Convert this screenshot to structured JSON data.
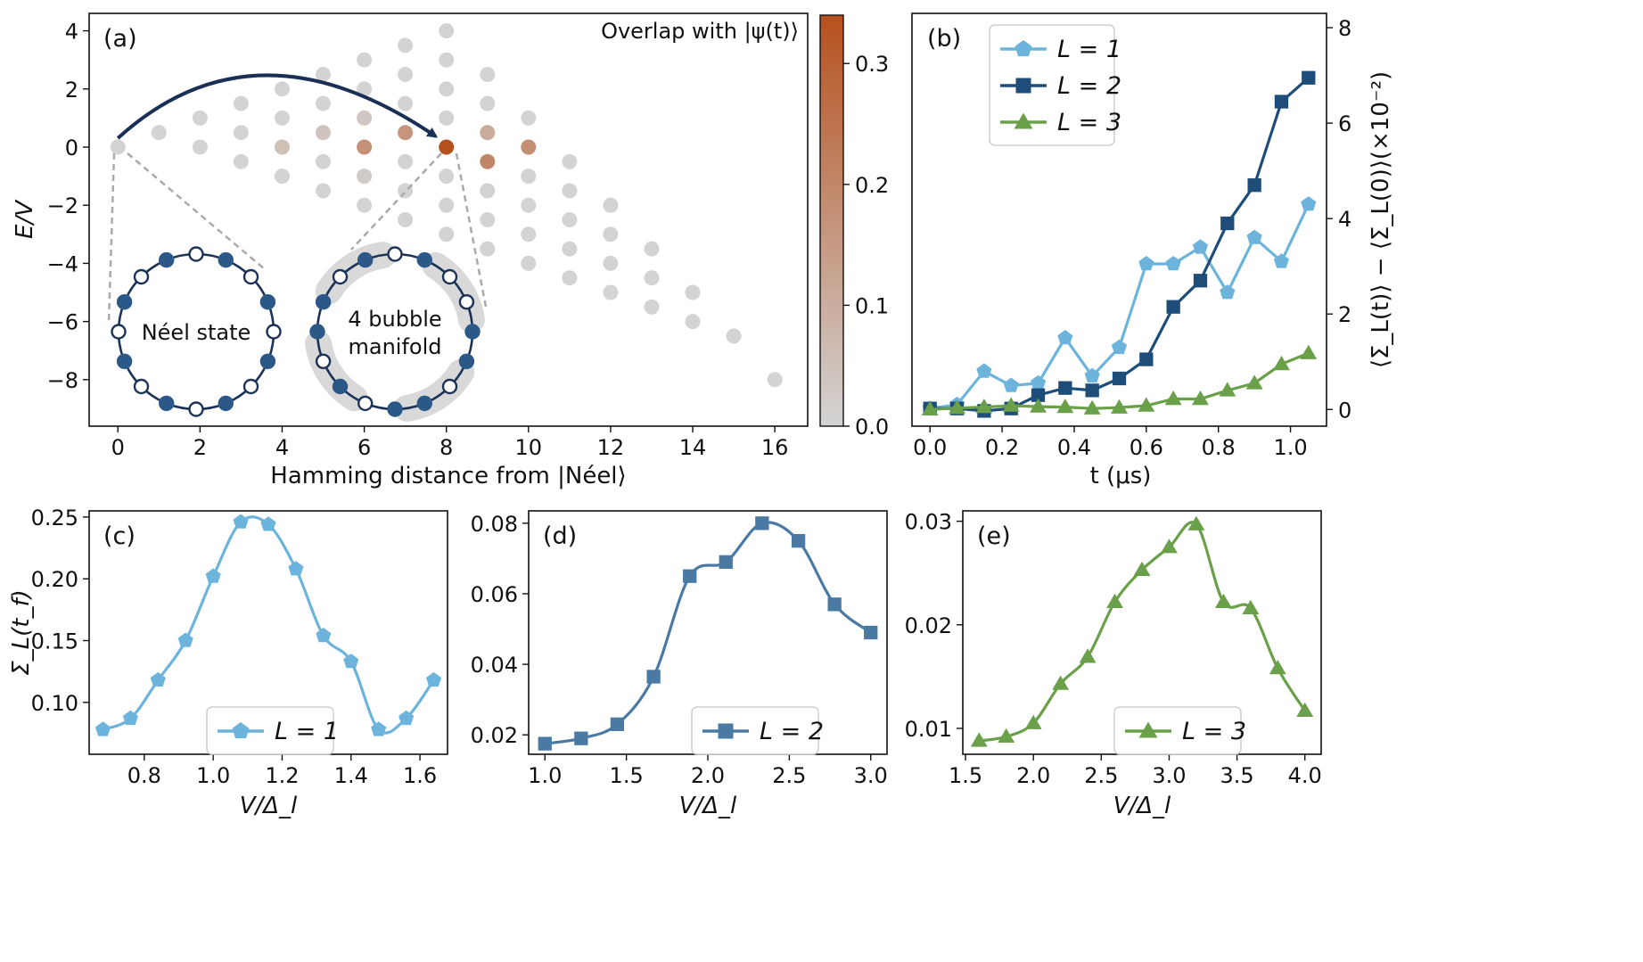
{
  "chart_data": [
    {
      "panel": "(a)",
      "type": "scatter",
      "xlabel": "Hamming distance from |Néel⟩",
      "ylabel": "E/V",
      "xlim": [
        -0.7,
        16.8
      ],
      "ylim": [
        -9.6,
        4.6
      ],
      "xticks": [
        0,
        2,
        4,
        6,
        8,
        10,
        12,
        14,
        16
      ],
      "yticks": [
        4,
        2,
        0,
        -2,
        -4,
        -6,
        -8
      ],
      "xtick_labels": [
        "0",
        "2",
        "4",
        "6",
        "8",
        "10",
        "12",
        "14",
        "16"
      ],
      "ytick_labels": [
        "4",
        "2",
        "0",
        "−2",
        "−4",
        "−6",
        "−8"
      ],
      "colorbar": {
        "label": "Overlap with |ψ(t)⟩",
        "range": [
          0,
          0.34
        ],
        "ticks": [
          0.0,
          0.1,
          0.2,
          0.3
        ],
        "tick_labels": [
          "0.0",
          "0.1",
          "0.2",
          "0.3"
        ],
        "color_low": "#d3d3d3",
        "color_high": "#b5501c"
      },
      "points": [
        {
          "x": 0,
          "y": 0,
          "v": 0
        },
        {
          "x": 1,
          "y": 0.5,
          "v": 0
        },
        {
          "x": 2,
          "y": 1,
          "v": 0
        },
        {
          "x": 2,
          "y": 0,
          "v": 0
        },
        {
          "x": 3,
          "y": 1.5,
          "v": 0
        },
        {
          "x": 3,
          "y": 0.5,
          "v": 0
        },
        {
          "x": 3,
          "y": -0.5,
          "v": 0
        },
        {
          "x": 4,
          "y": 2,
          "v": 0
        },
        {
          "x": 4,
          "y": 1,
          "v": 0
        },
        {
          "x": 4,
          "y": 0,
          "v": 0.05
        },
        {
          "x": 4,
          "y": -1,
          "v": 0
        },
        {
          "x": 5,
          "y": 2.5,
          "v": 0
        },
        {
          "x": 5,
          "y": 1.5,
          "v": 0
        },
        {
          "x": 5,
          "y": 0.5,
          "v": 0.04
        },
        {
          "x": 5,
          "y": -0.5,
          "v": 0
        },
        {
          "x": 5,
          "y": -1.5,
          "v": 0
        },
        {
          "x": 6,
          "y": 3,
          "v": 0
        },
        {
          "x": 6,
          "y": 2,
          "v": 0
        },
        {
          "x": 6,
          "y": 1,
          "v": 0.03
        },
        {
          "x": 6,
          "y": 0,
          "v": 0.17
        },
        {
          "x": 6,
          "y": -1,
          "v": 0.02
        },
        {
          "x": 6,
          "y": -2,
          "v": 0
        },
        {
          "x": 7,
          "y": 3.5,
          "v": 0
        },
        {
          "x": 7,
          "y": 2.5,
          "v": 0
        },
        {
          "x": 7,
          "y": 1.5,
          "v": 0
        },
        {
          "x": 7,
          "y": 0.5,
          "v": 0.16
        },
        {
          "x": 7,
          "y": -0.5,
          "v": 0
        },
        {
          "x": 7,
          "y": -1.5,
          "v": 0
        },
        {
          "x": 7,
          "y": -2.5,
          "v": 0
        },
        {
          "x": 8,
          "y": 4,
          "v": 0
        },
        {
          "x": 8,
          "y": 3,
          "v": 0
        },
        {
          "x": 8,
          "y": 2,
          "v": 0
        },
        {
          "x": 8,
          "y": 1,
          "v": 0
        },
        {
          "x": 8,
          "y": 0,
          "v": 0.34
        },
        {
          "x": 8,
          "y": -1,
          "v": 0
        },
        {
          "x": 8,
          "y": -2,
          "v": 0
        },
        {
          "x": 8,
          "y": -3,
          "v": 0
        },
        {
          "x": 9,
          "y": 2.5,
          "v": 0
        },
        {
          "x": 9,
          "y": 1.5,
          "v": 0
        },
        {
          "x": 9,
          "y": 0.5,
          "v": 0.1
        },
        {
          "x": 9,
          "y": -0.5,
          "v": 0.2
        },
        {
          "x": 9,
          "y": -1.5,
          "v": 0
        },
        {
          "x": 9,
          "y": -2.5,
          "v": 0
        },
        {
          "x": 9,
          "y": -3.5,
          "v": 0
        },
        {
          "x": 10,
          "y": 1,
          "v": 0
        },
        {
          "x": 10,
          "y": 0,
          "v": 0.18
        },
        {
          "x": 10,
          "y": -1,
          "v": 0
        },
        {
          "x": 10,
          "y": -2,
          "v": 0
        },
        {
          "x": 10,
          "y": -3,
          "v": 0
        },
        {
          "x": 10,
          "y": -4,
          "v": 0
        },
        {
          "x": 11,
          "y": -0.5,
          "v": 0
        },
        {
          "x": 11,
          "y": -1.5,
          "v": 0
        },
        {
          "x": 11,
          "y": -2.5,
          "v": 0
        },
        {
          "x": 11,
          "y": -3.5,
          "v": 0
        },
        {
          "x": 11,
          "y": -4.5,
          "v": 0
        },
        {
          "x": 12,
          "y": -2,
          "v": 0
        },
        {
          "x": 12,
          "y": -3,
          "v": 0
        },
        {
          "x": 12,
          "y": -4,
          "v": 0
        },
        {
          "x": 12,
          "y": -5,
          "v": 0
        },
        {
          "x": 13,
          "y": -3.5,
          "v": 0
        },
        {
          "x": 13,
          "y": -4.5,
          "v": 0
        },
        {
          "x": 13,
          "y": -5.5,
          "v": 0
        },
        {
          "x": 14,
          "y": -5,
          "v": 0
        },
        {
          "x": 14,
          "y": -6,
          "v": 0
        },
        {
          "x": 15,
          "y": -6.5,
          "v": 0
        },
        {
          "x": 16,
          "y": -8,
          "v": 0
        }
      ],
      "inset_labels": {
        "neel": "Néel state",
        "bubble_line1": "4 bubble",
        "bubble_line2": "manifold"
      }
    },
    {
      "panel": "(b)",
      "type": "line",
      "xlabel": "t (μs)",
      "ylabel": "⟨Σ_L(t)⟩ − ⟨Σ_L(0)⟩(×10⁻²)",
      "xlim": [
        -0.05,
        1.1
      ],
      "ylim": [
        -0.35,
        8.3
      ],
      "xticks": [
        0.0,
        0.2,
        0.4,
        0.6,
        0.8,
        1.0
      ],
      "xtick_labels": [
        "0.0",
        "0.2",
        "0.4",
        "0.6",
        "0.8",
        "1.0"
      ],
      "yticks": [
        0,
        2,
        4,
        6,
        8
      ],
      "ytick_labels": [
        "0",
        "2",
        "4",
        "6",
        "8"
      ],
      "x": [
        0.0,
        0.075,
        0.15,
        0.225,
        0.3,
        0.375,
        0.45,
        0.525,
        0.6,
        0.675,
        0.75,
        0.825,
        0.9,
        0.975,
        1.05
      ],
      "series": [
        {
          "name": "L = 1",
          "color": "#6cb4dc",
          "marker": "pentagon",
          "values": [
            0.02,
            0.1,
            0.8,
            0.5,
            0.55,
            1.5,
            0.7,
            1.3,
            3.05,
            3.05,
            3.4,
            2.45,
            3.6,
            3.1,
            4.3
          ]
        },
        {
          "name": "L = 2",
          "color": "#1e4d7a",
          "marker": "square",
          "values": [
            0.02,
            0.02,
            -0.03,
            0.02,
            0.3,
            0.45,
            0.4,
            0.65,
            1.05,
            2.15,
            2.7,
            3.9,
            4.7,
            6.45,
            6.95
          ]
        },
        {
          "name": "L = 3",
          "color": "#6aa04a",
          "marker": "triangle",
          "values": [
            0.0,
            0.03,
            0.05,
            0.08,
            0.06,
            0.05,
            0.02,
            0.04,
            0.08,
            0.22,
            0.22,
            0.4,
            0.55,
            0.95,
            1.18
          ]
        }
      ],
      "legend": [
        "L = 1",
        "L = 2",
        "L = 3"
      ]
    },
    {
      "panel": "(c)",
      "type": "line",
      "xlabel": "V/Δ_l",
      "ylabel": "Σ_L(t_f)",
      "xlim": [
        0.64,
        1.68
      ],
      "ylim": [
        0.058,
        0.255
      ],
      "xticks": [
        0.8,
        1.0,
        1.2,
        1.4,
        1.6
      ],
      "xtick_labels": [
        "0.8",
        "1.0",
        "1.2",
        "1.4",
        "1.6"
      ],
      "yticks": [
        0.1,
        0.15,
        0.2,
        0.25
      ],
      "ytick_labels": [
        "0.10",
        "0.15",
        "0.20",
        "0.25"
      ],
      "series": [
        {
          "name": "L = 1",
          "color": "#6cb4dc",
          "marker": "pentagon",
          "x": [
            0.68,
            0.76,
            0.84,
            0.92,
            1.0,
            1.08,
            1.16,
            1.24,
            1.32,
            1.4,
            1.48,
            1.56,
            1.64
          ],
          "values": [
            0.078,
            0.087,
            0.118,
            0.15,
            0.202,
            0.246,
            0.244,
            0.208,
            0.154,
            0.133,
            0.078,
            0.087,
            0.118
          ]
        }
      ],
      "legend": [
        "L = 1"
      ]
    },
    {
      "panel": "(d)",
      "type": "line",
      "xlabel": "V/Δ_l",
      "ylabel": "",
      "xlim": [
        0.9,
        3.1
      ],
      "ylim": [
        0.0145,
        0.0835
      ],
      "xticks": [
        1.0,
        1.5,
        2.0,
        2.5,
        3.0
      ],
      "xtick_labels": [
        "1.0",
        "1.5",
        "2.0",
        "2.5",
        "3.0"
      ],
      "yticks": [
        0.02,
        0.04,
        0.06,
        0.08
      ],
      "ytick_labels": [
        "0.02",
        "0.04",
        "0.06",
        "0.08"
      ],
      "series": [
        {
          "name": "L = 2",
          "color": "#4a7aa4",
          "marker": "square",
          "x": [
            1.0,
            1.222,
            1.444,
            1.667,
            1.889,
            2.111,
            2.333,
            2.556,
            2.778,
            3.0
          ],
          "values": [
            0.0175,
            0.019,
            0.023,
            0.0365,
            0.065,
            0.069,
            0.08,
            0.075,
            0.057,
            0.049
          ]
        }
      ],
      "legend": [
        "L = 2"
      ]
    },
    {
      "panel": "(e)",
      "type": "line",
      "xlabel": "V/Δ_l",
      "ylabel": "",
      "xlim": [
        1.48,
        4.12
      ],
      "ylim": [
        0.0075,
        0.031
      ],
      "xticks": [
        1.5,
        2.0,
        2.5,
        3.0,
        3.5,
        4.0
      ],
      "xtick_labels": [
        "1.5",
        "2.0",
        "2.5",
        "3.0",
        "3.5",
        "4.0"
      ],
      "yticks": [
        0.01,
        0.02,
        0.03
      ],
      "ytick_labels": [
        "0.01",
        "0.02",
        "0.03"
      ],
      "series": [
        {
          "name": "L = 3",
          "color": "#6aa04a",
          "marker": "triangle",
          "x": [
            1.6,
            1.8,
            2.0,
            2.2,
            2.4,
            2.6,
            2.8,
            3.0,
            3.2,
            3.4,
            3.6,
            3.8,
            4.0
          ],
          "values": [
            0.0088,
            0.0092,
            0.0105,
            0.0143,
            0.0169,
            0.0222,
            0.0253,
            0.0275,
            0.0297,
            0.0222,
            0.0216,
            0.0158,
            0.0117
          ]
        }
      ],
      "legend": [
        "L = 3"
      ]
    }
  ]
}
